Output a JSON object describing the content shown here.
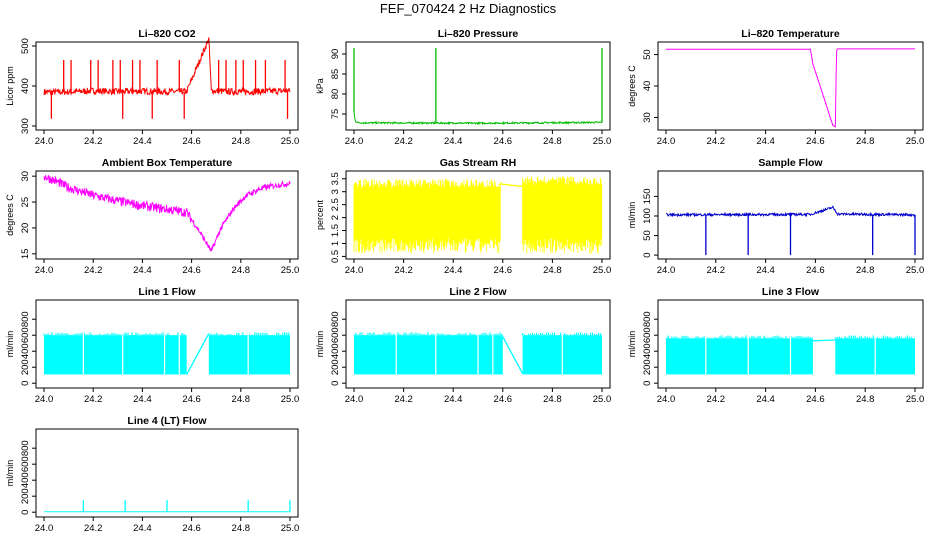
{
  "figure_title": "FEF_070424  2 Hz Diagnostics",
  "chart_data": [
    {
      "id": "co2",
      "type": "line",
      "title": "Li–820 CO2",
      "ylabel": "Licor ppm",
      "color": "#ff0000",
      "xlim": [
        24.0,
        25.0
      ],
      "ylim": [
        290,
        510
      ],
      "yticks": [
        300,
        400,
        500
      ],
      "xticks": [
        24.0,
        24.2,
        24.4,
        24.6,
        24.8,
        25.0
      ],
      "xtick_labels": [
        "24.0",
        "24.2",
        "24.4",
        "24.6",
        "24.8",
        "25.0"
      ],
      "series": [
        {
          "name": "CO2",
          "x": [
            24.0,
            24.1,
            24.2,
            24.3,
            24.4,
            24.5,
            24.58,
            24.67,
            24.68,
            24.75,
            24.85,
            25.0
          ],
          "y": [
            385,
            385,
            388,
            386,
            387,
            386,
            386,
            518,
            388,
            386,
            386,
            388
          ]
        }
      ],
      "noise": {
        "kind": "spikes",
        "amp": 8,
        "up": [
          24.08,
          24.11,
          24.19,
          24.22,
          24.28,
          24.31,
          24.36,
          24.39,
          24.46,
          24.55,
          24.71,
          24.74,
          24.78,
          24.81,
          24.86,
          24.9,
          24.98
        ],
        "up_to": 465,
        "down": [
          24.03,
          24.32,
          24.44,
          24.57,
          24.99
        ],
        "down_to": 318
      }
    },
    {
      "id": "pressure",
      "type": "line",
      "title": "Li–820 Pressure",
      "ylabel": "kPa",
      "color": "#00bb00",
      "xlim": [
        24.0,
        25.0
      ],
      "ylim": [
        71,
        93
      ],
      "yticks": [
        75,
        80,
        85,
        90
      ],
      "xticks": [
        24.0,
        24.2,
        24.4,
        24.6,
        24.8,
        25.0
      ],
      "xtick_labels": [
        "24.0",
        "24.2",
        "24.4",
        "24.6",
        "24.8",
        "25.0"
      ],
      "series": [
        {
          "name": "Pressure",
          "x": [
            24.0,
            24.005,
            24.02,
            24.5,
            25.0
          ],
          "y": [
            75.5,
            73.2,
            72.8,
            72.7,
            72.9
          ]
        }
      ],
      "noise": {
        "kind": "spikes",
        "amp": 0.2,
        "up": [
          24.0,
          24.33,
          25.0
        ],
        "up_to": 91.5,
        "down": [],
        "down_to": 72
      }
    },
    {
      "id": "licor_temp",
      "type": "line",
      "title": "Li–820 Temperature",
      "ylabel": "degrees C",
      "color": "#ff00ff",
      "xlim": [
        24.0,
        25.0
      ],
      "ylim": [
        26,
        54
      ],
      "yticks": [
        30,
        40,
        50
      ],
      "xticks": [
        24.0,
        24.2,
        24.4,
        24.6,
        24.8,
        25.0
      ],
      "xtick_labels": [
        "24.0",
        "24.2",
        "24.4",
        "24.6",
        "24.8",
        "25.0"
      ],
      "series": [
        {
          "name": "Temperature",
          "x": [
            24.0,
            24.58,
            24.59,
            24.67,
            24.68,
            24.685,
            24.69,
            25.0
          ],
          "y": [
            51.7,
            51.7,
            47,
            27.5,
            27,
            51.5,
            51.8,
            51.8
          ]
        }
      ],
      "noise": {
        "kind": "none"
      }
    },
    {
      "id": "box_temp",
      "type": "line",
      "title": "Ambient Box Temperature",
      "ylabel": "degrees C",
      "color": "#ff00ff",
      "xlim": [
        24.0,
        25.0
      ],
      "ylim": [
        14,
        31
      ],
      "yticks": [
        15,
        20,
        25,
        30
      ],
      "xticks": [
        24.0,
        24.2,
        24.4,
        24.6,
        24.8,
        25.0
      ],
      "xtick_labels": [
        "24.0",
        "24.2",
        "24.4",
        "24.6",
        "24.8",
        "25.0"
      ],
      "series": [
        {
          "name": "Box Temp",
          "x": [
            24.0,
            24.05,
            24.1,
            24.2,
            24.3,
            24.4,
            24.5,
            24.58,
            24.63,
            24.68,
            24.72,
            24.77,
            24.82,
            24.88,
            24.95,
            25.0
          ],
          "y": [
            30,
            29,
            27.8,
            26.3,
            25.2,
            24.3,
            23.6,
            23,
            19.5,
            15.5,
            20,
            23.7,
            26.2,
            27.6,
            28.3,
            28.6
          ]
        }
      ],
      "noise": {
        "kind": "band",
        "amp": 0.9
      }
    },
    {
      "id": "rh",
      "type": "band",
      "title": "Gas Stream RH",
      "ylabel": "percent",
      "color": "#ffff00",
      "xlim": [
        24.0,
        25.0
      ],
      "ylim": [
        0.4,
        3.8
      ],
      "yticks": [
        0.5,
        1.0,
        1.5,
        2.0,
        2.5,
        3.0,
        3.5
      ],
      "xticks": [
        24.0,
        24.2,
        24.4,
        24.6,
        24.8,
        25.0
      ],
      "xtick_labels": [
        "24.0",
        "24.2",
        "24.4",
        "24.6",
        "24.8",
        "25.0"
      ],
      "series": [
        {
          "name": "RH",
          "segments": [
            {
              "x0": 24.0,
              "x1": 24.59,
              "min": 0.6,
              "max": 3.5
            },
            {
              "x0": 24.68,
              "x1": 25.0,
              "min": 0.6,
              "max": 3.6
            }
          ],
          "bridge": {
            "x": [
              24.59,
              24.68
            ],
            "y": [
              3.3,
              3.2
            ]
          }
        }
      ]
    },
    {
      "id": "sample_flow",
      "type": "line",
      "title": "Sample Flow",
      "ylabel": "ml/min",
      "color": "#0000cc",
      "xlim": [
        24.0,
        25.0
      ],
      "ylim": [
        -10,
        215
      ],
      "yticks": [
        0,
        50,
        100,
        150
      ],
      "xticks": [
        24.0,
        24.2,
        24.4,
        24.6,
        24.8,
        25.0
      ],
      "xtick_labels": [
        "24.0",
        "24.2",
        "24.4",
        "24.6",
        "24.8",
        "25.0"
      ],
      "series": [
        {
          "name": "Sample Flow",
          "x": [
            24.0,
            24.58,
            24.67,
            24.69,
            25.0
          ],
          "y": [
            103,
            104,
            122,
            105,
            103
          ]
        }
      ],
      "noise": {
        "kind": "spikes",
        "amp": 3,
        "up": [],
        "up_to": 0,
        "down": [
          24.16,
          24.33,
          24.5,
          24.83,
          25.0
        ],
        "down_to": 0
      }
    },
    {
      "id": "line1",
      "type": "band",
      "title": "Line 1 Flow",
      "ylabel": "ml/min",
      "color": "#00ffff",
      "xlim": [
        24.0,
        25.0
      ],
      "ylim": [
        -60,
        1040
      ],
      "yticks": [
        0,
        200,
        400,
        600,
        800
      ],
      "xticks": [
        24.0,
        24.2,
        24.4,
        24.6,
        24.8,
        25.0
      ],
      "xtick_labels": [
        "24.0",
        "24.2",
        "24.4",
        "24.6",
        "24.8",
        "25.0"
      ],
      "series": [
        {
          "name": "Line 1",
          "segments": [
            {
              "x0": 24.0,
              "x1": 24.58,
              "min": 110,
              "max": 600
            },
            {
              "x0": 24.67,
              "x1": 25.0,
              "min": 110,
              "max": 600
            }
          ],
          "bridge": {
            "x": [
              24.58,
              24.67
            ],
            "y": [
              110,
              620
            ]
          },
          "gaps": [
            24.16,
            24.32,
            24.49,
            24.55,
            24.83
          ]
        }
      ]
    },
    {
      "id": "line2",
      "type": "band",
      "title": "Line 2 Flow",
      "ylabel": "ml/min",
      "color": "#00ffff",
      "xlim": [
        24.0,
        25.0
      ],
      "ylim": [
        -60,
        1040
      ],
      "yticks": [
        0,
        200,
        400,
        600,
        800
      ],
      "xticks": [
        24.0,
        24.2,
        24.4,
        24.6,
        24.8,
        25.0
      ],
      "xtick_labels": [
        "24.0",
        "24.2",
        "24.4",
        "24.6",
        "24.8",
        "25.0"
      ],
      "series": [
        {
          "name": "Line 2",
          "segments": [
            {
              "x0": 24.0,
              "x1": 24.6,
              "min": 110,
              "max": 600
            },
            {
              "x0": 24.68,
              "x1": 25.0,
              "min": 110,
              "max": 600
            }
          ],
          "bridge": {
            "x": [
              24.6,
              24.68
            ],
            "y": [
              580,
              120
            ]
          },
          "gaps": [
            24.17,
            24.33,
            24.5,
            24.56,
            24.84
          ]
        }
      ]
    },
    {
      "id": "line3",
      "type": "band",
      "title": "Line 3 Flow",
      "ylabel": "ml/min",
      "color": "#00ffff",
      "xlim": [
        24.0,
        25.0
      ],
      "ylim": [
        -60,
        1040
      ],
      "yticks": [
        0,
        200,
        400,
        600,
        800
      ],
      "xticks": [
        24.0,
        24.2,
        24.4,
        24.6,
        24.8,
        25.0
      ],
      "xtick_labels": [
        "24.0",
        "24.2",
        "24.4",
        "24.6",
        "24.8",
        "25.0"
      ],
      "series": [
        {
          "name": "Line 3",
          "segments": [
            {
              "x0": 24.0,
              "x1": 24.59,
              "min": 110,
              "max": 560
            },
            {
              "x0": 24.68,
              "x1": 25.0,
              "min": 110,
              "max": 560
            }
          ],
          "bridge": {
            "x": [
              24.59,
              24.68
            ],
            "y": [
              530,
              540
            ]
          },
          "gaps": [
            24.16,
            24.33,
            24.5,
            24.84
          ]
        }
      ]
    },
    {
      "id": "line4",
      "type": "line",
      "title": "Line 4 (LT) Flow",
      "ylabel": "ml/min",
      "color": "#00ffff",
      "xlim": [
        24.0,
        25.0
      ],
      "ylim": [
        -60,
        1040
      ],
      "yticks": [
        0,
        200,
        400,
        600,
        800
      ],
      "xticks": [
        24.0,
        24.2,
        24.4,
        24.6,
        24.8,
        25.0
      ],
      "xtick_labels": [
        "24.0",
        "24.2",
        "24.4",
        "24.6",
        "24.8",
        "25.0"
      ],
      "series": [
        {
          "name": "Line 4",
          "x": [
            24.0,
            25.0
          ],
          "y": [
            5,
            5
          ]
        }
      ],
      "noise": {
        "kind": "spikes",
        "amp": 0,
        "up": [
          24.16,
          24.33,
          24.5,
          24.83,
          25.0
        ],
        "up_to": 150,
        "down": [],
        "down_to": 0
      }
    }
  ]
}
